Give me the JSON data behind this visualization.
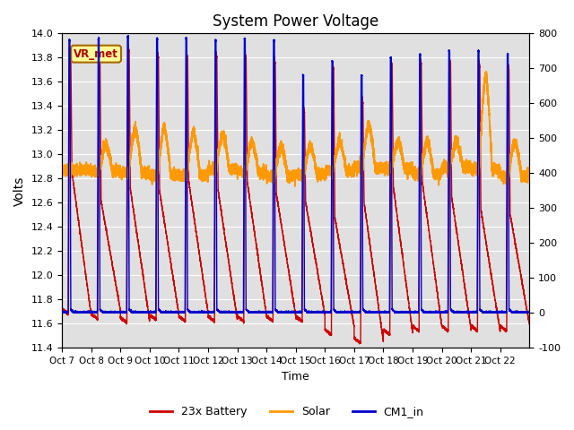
{
  "title": "System Power Voltage",
  "xlabel": "Time",
  "ylabel_left": "Volts",
  "ylim_left": [
    11.4,
    14.0
  ],
  "ylim_right": [
    -100,
    800
  ],
  "x_tick_labels": [
    "Oct 7",
    "Oct 8",
    "Oct 9",
    "Oct 10",
    "Oct 11",
    "Oct 12",
    "Oct 13",
    "Oct 14",
    "Oct 15",
    "Oct 16",
    "Oct 17",
    "Oct 18",
    "Oct 19",
    "Oct 20",
    "Oct 21",
    "Oct 22"
  ],
  "yticks_left": [
    11.4,
    11.6,
    11.8,
    12.0,
    12.2,
    12.4,
    12.6,
    12.8,
    13.0,
    13.2,
    13.4,
    13.6,
    13.8,
    14.0
  ],
  "yticks_right": [
    -100,
    0,
    100,
    200,
    300,
    400,
    500,
    600,
    700,
    800
  ],
  "color_battery": "#cc0000",
  "color_solar": "#ff9900",
  "color_cm1": "#0000cc",
  "legend_labels": [
    "23x Battery",
    "Solar",
    "CM1_in"
  ],
  "annotation_text": "VR_met",
  "bg_color": "#e0e0e0",
  "fig_color": "#ffffff",
  "grid_color": "#ffffff",
  "title_fontsize": 12,
  "num_days": 16,
  "day_bat_peaks": [
    13.88,
    13.85,
    13.9,
    13.85,
    13.85,
    13.85,
    13.85,
    13.8,
    13.4,
    13.75,
    13.47,
    13.78,
    13.79,
    13.8,
    13.78,
    13.75
  ],
  "day_sol_peaks": [
    410,
    480,
    530,
    530,
    520,
    510,
    490,
    480,
    480,
    490,
    540,
    490,
    490,
    490,
    680,
    490
  ],
  "day_cm_peaks": [
    780,
    785,
    790,
    785,
    785,
    780,
    785,
    780,
    680,
    720,
    680,
    730,
    740,
    750,
    750,
    740
  ],
  "day_night_low": [
    11.72,
    11.68,
    11.65,
    11.67,
    11.66,
    11.66,
    11.66,
    11.66,
    11.66,
    11.55,
    11.48,
    11.55,
    11.58,
    11.58,
    11.58,
    11.58
  ]
}
